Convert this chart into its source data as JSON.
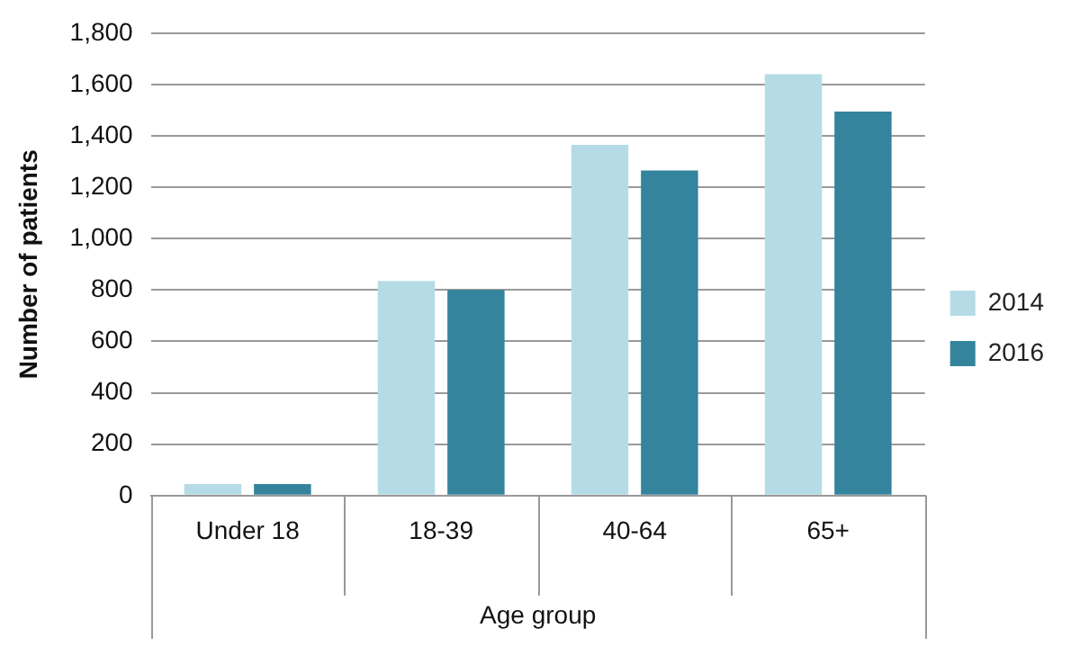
{
  "chart_data": {
    "type": "bar",
    "xlabel": "Age group",
    "ylabel": "Number of patients",
    "categories": [
      "Under 18",
      "18-39",
      "40-64",
      "65+"
    ],
    "series": [
      {
        "name": "2014",
        "color": "#b5dce6",
        "values": [
          45,
          835,
          1365,
          1640
        ]
      },
      {
        "name": "2016",
        "color": "#33849c",
        "values": [
          45,
          800,
          1265,
          1495
        ]
      }
    ],
    "ylim": [
      0,
      1800
    ],
    "yticks": [
      0,
      200,
      400,
      600,
      800,
      {
        "value": 1000,
        "label": "1,000"
      },
      {
        "value": 1200,
        "label": "1,200"
      },
      {
        "value": 1400,
        "label": "1,400"
      },
      {
        "value": 1600,
        "label": "1,600"
      },
      {
        "value": 1800,
        "label": "1,800"
      }
    ],
    "grid": "y",
    "legend": "right"
  }
}
